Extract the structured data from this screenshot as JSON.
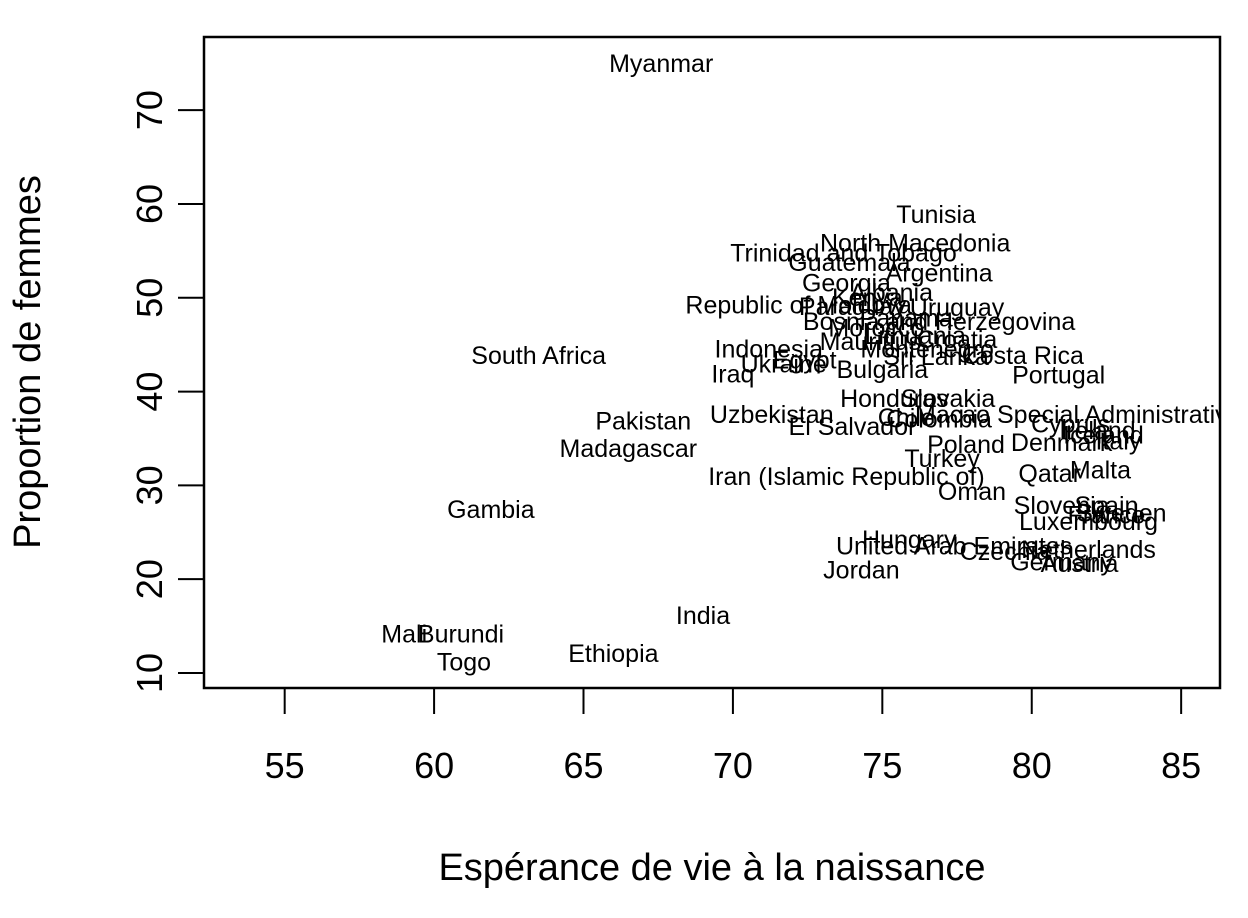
{
  "chart_data": {
    "type": "scatter",
    "title": "",
    "xlabel": "Espérance de vie à la naissance",
    "ylabel": "Proportion de femmes",
    "xlim": [
      52.3,
      86.3
    ],
    "ylim": [
      8.4,
      77.8
    ],
    "x_ticks": [
      55,
      60,
      65,
      70,
      75,
      80,
      85
    ],
    "y_ticks": [
      10,
      20,
      30,
      40,
      50,
      60,
      70
    ],
    "grid": false,
    "legend": "none",
    "point_style": "text labels",
    "points": [
      {
        "label": "Myanmar",
        "x": 67.6,
        "y": 74.9
      },
      {
        "label": "Tunisia",
        "x": 76.8,
        "y": 58.8
      },
      {
        "label": "North Macedonia",
        "x": 76.1,
        "y": 55.8
      },
      {
        "label": "Trinidad and Tobago",
        "x": 73.7,
        "y": 54.7
      },
      {
        "label": "Guatemala",
        "x": 73.9,
        "y": 53.7
      },
      {
        "label": "Argentina",
        "x": 76.9,
        "y": 52.6
      },
      {
        "label": "Georgia",
        "x": 73.8,
        "y": 51.5
      },
      {
        "label": "Albania",
        "x": 75.3,
        "y": 50.5
      },
      {
        "label": "Kenya",
        "x": 74.5,
        "y": 50.0
      },
      {
        "label": "Republic of Moldova",
        "x": 72.2,
        "y": 49.2
      },
      {
        "label": "Paraguay",
        "x": 74.0,
        "y": 49.0
      },
      {
        "label": "Uruguay",
        "x": 77.5,
        "y": 48.9
      },
      {
        "label": "Bosnia and Herzegovina",
        "x": 76.9,
        "y": 47.4
      },
      {
        "label": "Panama",
        "x": 75.8,
        "y": 47.8
      },
      {
        "label": "Morocco",
        "x": 74.8,
        "y": 46.7
      },
      {
        "label": "Mauritius",
        "x": 74.6,
        "y": 45.3
      },
      {
        "label": "Lithuania",
        "x": 76.1,
        "y": 45.9
      },
      {
        "label": "Croatia",
        "x": 77.5,
        "y": 45.5
      },
      {
        "label": "Indonesia",
        "x": 71.2,
        "y": 44.5
      },
      {
        "label": "Montenegro",
        "x": 76.5,
        "y": 44.5
      },
      {
        "label": "Sri Lanka",
        "x": 76.8,
        "y": 43.7
      },
      {
        "label": "Costa Rica",
        "x": 79.7,
        "y": 43.8
      },
      {
        "label": "South Africa",
        "x": 63.5,
        "y": 43.8
      },
      {
        "label": "Ukraine",
        "x": 71.7,
        "y": 42.9
      },
      {
        "label": "Egypt",
        "x": 72.4,
        "y": 43.3
      },
      {
        "label": "Bulgaria",
        "x": 75.0,
        "y": 42.3
      },
      {
        "label": "Iraq",
        "x": 70.0,
        "y": 41.8
      },
      {
        "label": "Portugal",
        "x": 80.9,
        "y": 41.7
      },
      {
        "label": "Honduras",
        "x": 75.4,
        "y": 39.2
      },
      {
        "label": "Slovakia",
        "x": 77.2,
        "y": 39.2
      },
      {
        "label": "Uzbekistan",
        "x": 71.3,
        "y": 37.5
      },
      {
        "label": "Chile",
        "x": 75.8,
        "y": 37.2
      },
      {
        "label": "Colombia",
        "x": 76.9,
        "y": 37.0
      },
      {
        "label": "Macao Special Administrative Region",
        "x": 83.0,
        "y": 37.5
      },
      {
        "label": "El Salvador",
        "x": 74.0,
        "y": 36.2
      },
      {
        "label": "Pakistan",
        "x": 67.0,
        "y": 36.8
      },
      {
        "label": "Cyprus",
        "x": 81.3,
        "y": 36.5
      },
      {
        "label": "Ireland",
        "x": 82.2,
        "y": 35.8
      },
      {
        "label": "Iceland",
        "x": 82.4,
        "y": 35.3
      },
      {
        "label": "Italy",
        "x": 82.9,
        "y": 34.7
      },
      {
        "label": "Poland",
        "x": 77.8,
        "y": 34.3
      },
      {
        "label": "Denmark",
        "x": 81.0,
        "y": 34.5
      },
      {
        "label": "Madagascar",
        "x": 66.5,
        "y": 33.9
      },
      {
        "label": "Turkey",
        "x": 77.0,
        "y": 32.8
      },
      {
        "label": "Iran (Islamic Republic of)",
        "x": 73.8,
        "y": 30.9
      },
      {
        "label": "Qatar",
        "x": 80.6,
        "y": 31.2
      },
      {
        "label": "Malta",
        "x": 82.3,
        "y": 31.6
      },
      {
        "label": "Oman",
        "x": 78.0,
        "y": 29.3
      },
      {
        "label": "Gambia",
        "x": 61.9,
        "y": 27.4
      },
      {
        "label": "Slovenia",
        "x": 81.0,
        "y": 27.8
      },
      {
        "label": "Spain",
        "x": 82.5,
        "y": 27.8
      },
      {
        "label": "Sweden",
        "x": 83.0,
        "y": 27.0
      },
      {
        "label": "France",
        "x": 82.5,
        "y": 26.8
      },
      {
        "label": "Luxembourg",
        "x": 81.9,
        "y": 26.1
      },
      {
        "label": "Hungary",
        "x": 75.9,
        "y": 24.2
      },
      {
        "label": "United Arab Emirates",
        "x": 77.4,
        "y": 23.5
      },
      {
        "label": "Czechia",
        "x": 79.1,
        "y": 22.9
      },
      {
        "label": "Netherlands",
        "x": 81.9,
        "y": 23.1
      },
      {
        "label": "Germany",
        "x": 81.0,
        "y": 21.8
      },
      {
        "label": "Austria",
        "x": 81.6,
        "y": 21.6
      },
      {
        "label": "Jordan",
        "x": 74.3,
        "y": 20.9
      },
      {
        "label": "India",
        "x": 69.0,
        "y": 16.1
      },
      {
        "label": "Mali",
        "x": 59.0,
        "y": 14.1
      },
      {
        "label": "Burundi",
        "x": 60.9,
        "y": 14.1
      },
      {
        "label": "Togo",
        "x": 61.0,
        "y": 11.1
      },
      {
        "label": "Ethiopia",
        "x": 66.0,
        "y": 12.0
      }
    ]
  }
}
